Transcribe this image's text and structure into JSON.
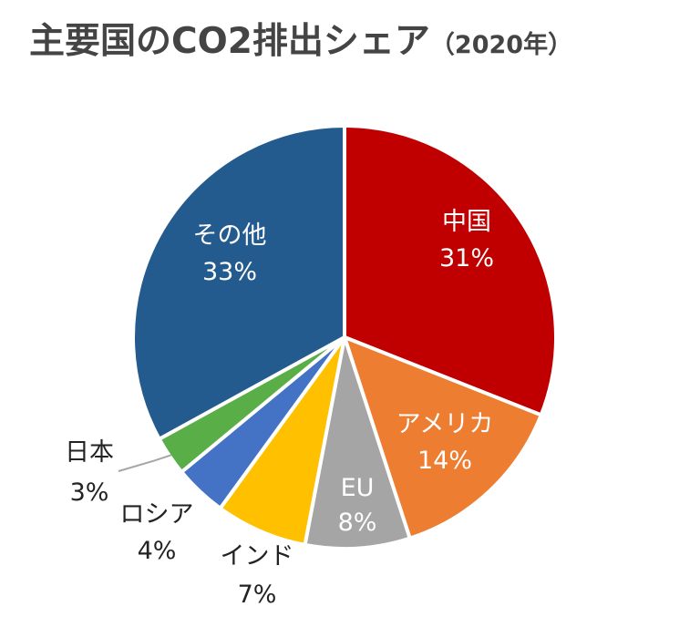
{
  "chart_data": {
    "type": "pie",
    "title": "主要国のCO2排出シェア",
    "subtitle": "（2020年）",
    "start_angle_deg": 0,
    "direction": "clockwise",
    "slices": [
      {
        "label": "中国",
        "value": 31,
        "value_label": "31%",
        "color": "#C00000",
        "label_color": "#ffffff",
        "label_position": "inside"
      },
      {
        "label": "アメリカ",
        "value": 14,
        "value_label": "14%",
        "color": "#ED7D31",
        "label_color": "#ffffff",
        "label_position": "inside"
      },
      {
        "label": "EU",
        "value": 8,
        "value_label": "8%",
        "color": "#A5A5A5",
        "label_color": "#ffffff",
        "label_position": "inside"
      },
      {
        "label": "インド",
        "value": 7,
        "value_label": "7%",
        "color": "#FFC000",
        "label_color": "#222222",
        "label_position": "outside"
      },
      {
        "label": "ロシア",
        "value": 4,
        "value_label": "4%",
        "color": "#4472C4",
        "label_color": "#222222",
        "label_position": "outside"
      },
      {
        "label": "日本",
        "value": 3,
        "value_label": "3%",
        "color": "#5AAE48",
        "label_color": "#222222",
        "label_position": "outside-leader"
      },
      {
        "label": "その他",
        "value": 33,
        "value_label": "33%",
        "color": "#245B8F",
        "label_color": "#ffffff",
        "label_position": "inside"
      }
    ]
  }
}
